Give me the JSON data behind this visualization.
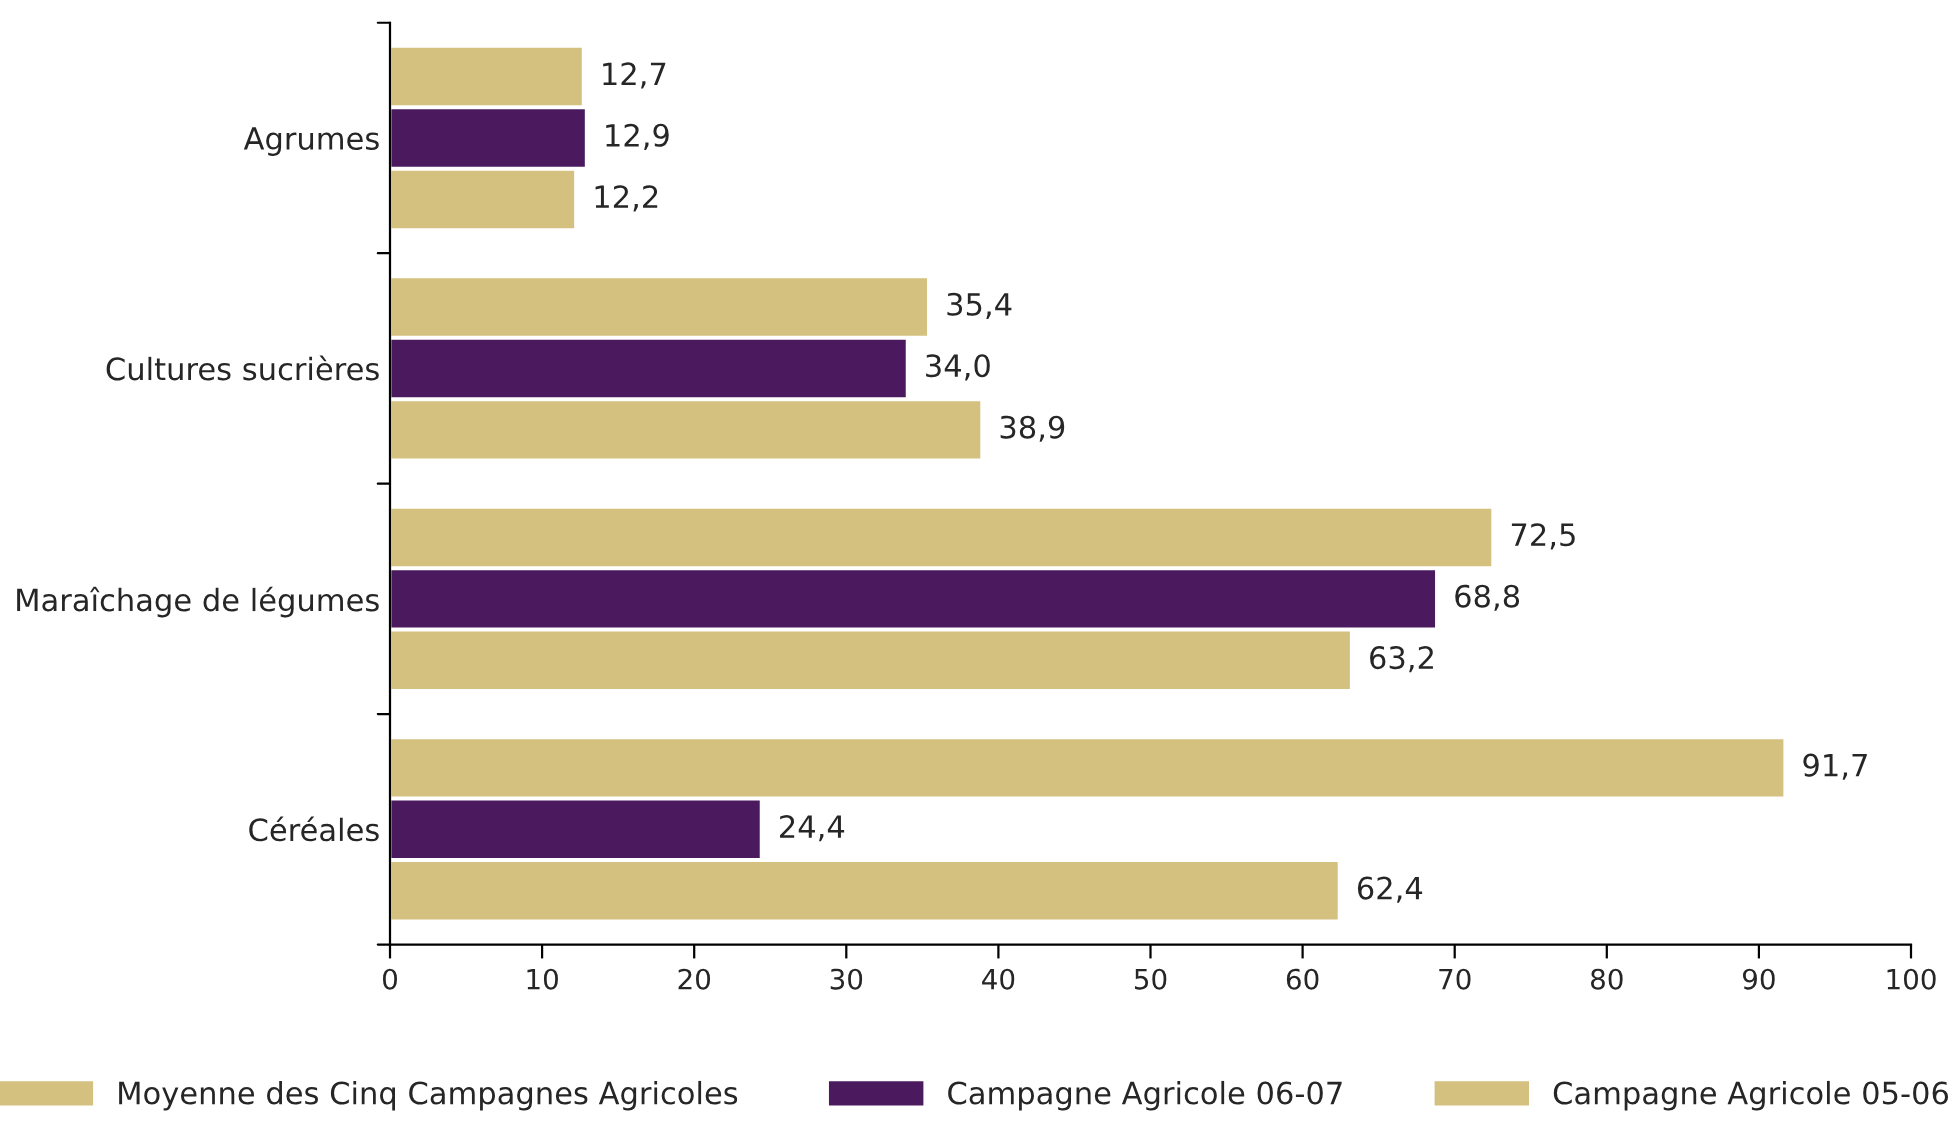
{
  "chart_data": {
    "type": "bar",
    "orientation": "horizontal",
    "categories": [
      "Agrumes",
      "Cultures sucrières",
      "Maraîchage de légumes",
      "Céréales"
    ],
    "series": [
      {
        "name": "Moyenne des Cinq Campagnes Agricoles",
        "color": "#d4c17f",
        "values": [
          12.7,
          35.4,
          72.5,
          91.7
        ],
        "value_labels": [
          "12,7",
          "35,4",
          "72,5",
          "91,7"
        ]
      },
      {
        "name": "Campagne Agricole 06-07",
        "color": "#4b1a5e",
        "values": [
          12.9,
          34.0,
          68.8,
          24.4
        ],
        "value_labels": [
          "12,9",
          "34,0",
          "68,8",
          "24,4"
        ]
      },
      {
        "name": "Campagne Agricole 05-06",
        "color": "#d4c17f",
        "values": [
          12.2,
          38.9,
          63.2,
          62.4
        ],
        "value_labels": [
          "12,2",
          "38,9",
          "63,2",
          "62,4"
        ]
      }
    ],
    "xlim": [
      0,
      100
    ],
    "xticks": [
      0,
      10,
      20,
      30,
      40,
      50,
      60,
      70,
      80,
      90,
      100
    ],
    "grid": false,
    "legend": "bottom"
  }
}
